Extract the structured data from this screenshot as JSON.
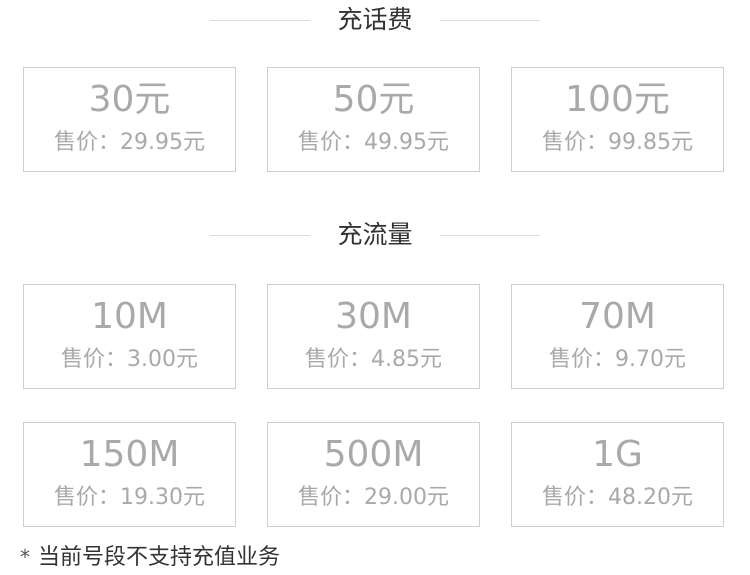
{
  "sections": [
    {
      "title": "充话费",
      "cards": [
        {
          "amount": "30元",
          "price_label": "售价：",
          "price": "29.95元"
        },
        {
          "amount": "50元",
          "price_label": "售价：",
          "price": "49.95元"
        },
        {
          "amount": "100元",
          "price_label": "售价：",
          "price": "99.85元"
        }
      ]
    },
    {
      "title": "充流量",
      "cards": [
        {
          "amount": "10M",
          "price_label": "售价：",
          "price": "3.00元"
        },
        {
          "amount": "30M",
          "price_label": "售价：",
          "price": "4.85元"
        },
        {
          "amount": "70M",
          "price_label": "售价：",
          "price": "9.70元"
        },
        {
          "amount": "150M",
          "price_label": "售价：",
          "price": "19.30元"
        },
        {
          "amount": "500M",
          "price_label": "售价：",
          "price": "29.00元"
        },
        {
          "amount": "1G",
          "price_label": "售价：",
          "price": "48.20元"
        }
      ]
    }
  ],
  "note": {
    "symbol": "*",
    "text": "当前号段不支持充值业务"
  },
  "colors": {
    "disabled_text": "#a9a9a9",
    "card_border": "#cfcfcf",
    "title_text": "#333333",
    "divider": "#dcdcdc"
  }
}
